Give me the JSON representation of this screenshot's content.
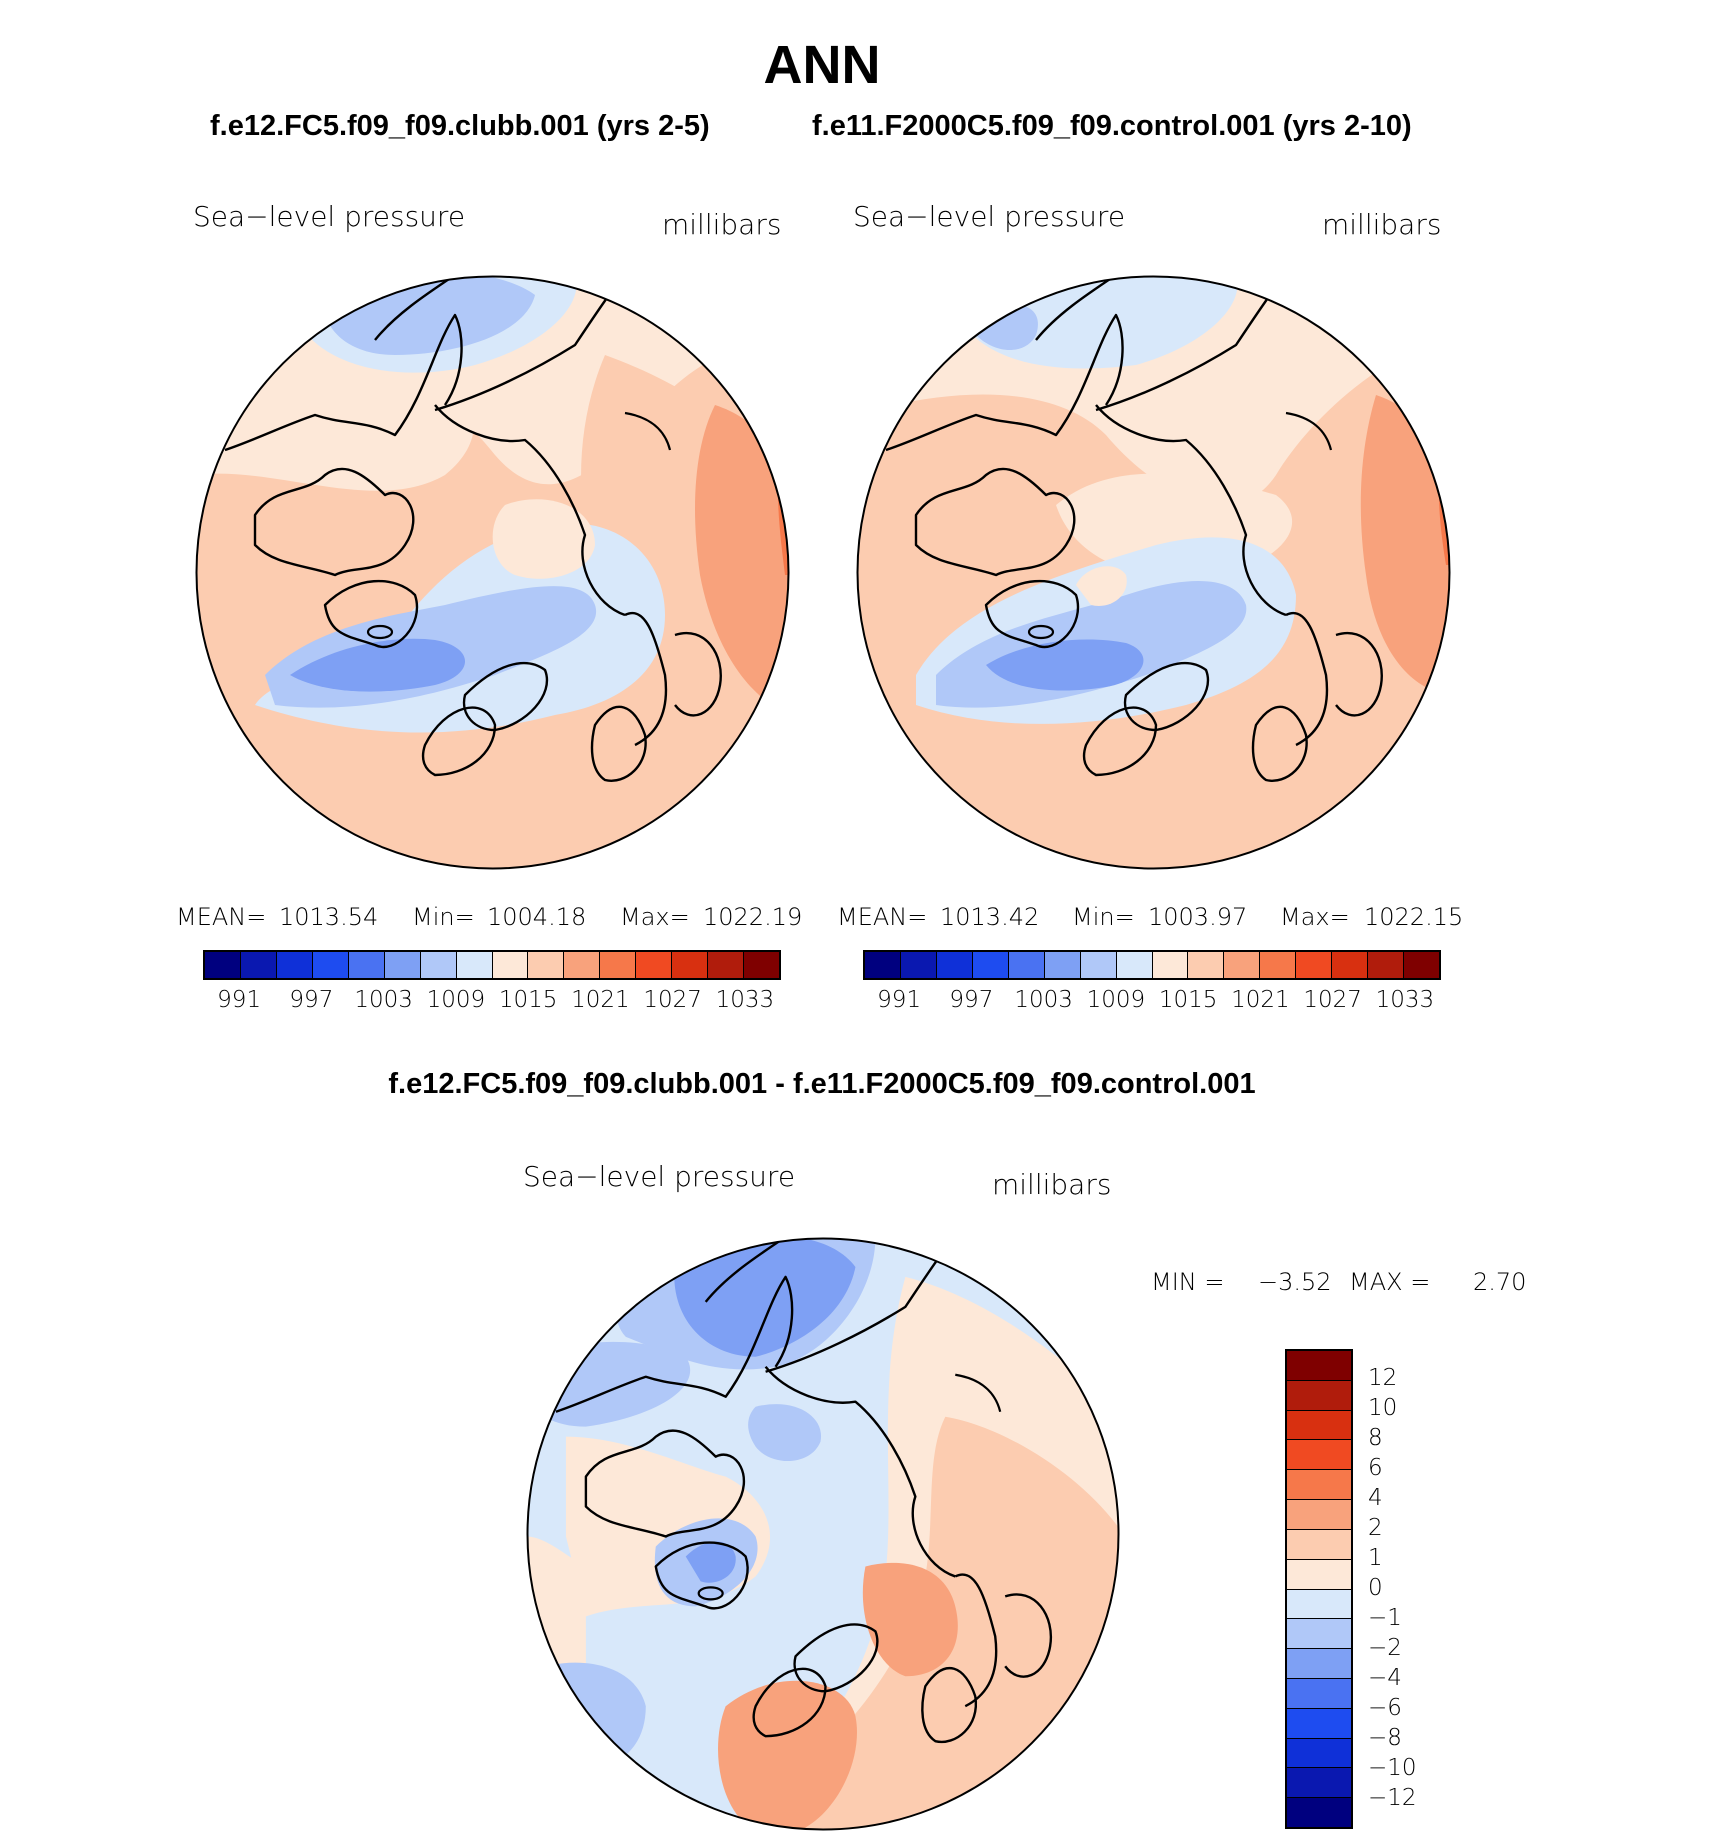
{
  "title": "ANN",
  "panels": [
    {
      "case_title": "f.e12.FC5.f09_f09.clubb.001 (yrs 2-5)",
      "variable": "Sea−level pressure",
      "units": "millibars",
      "mean_label": "MEAN=",
      "mean_value": "1013.54",
      "min_label": "Min=",
      "min_value": "1004.18",
      "max_label": "Max=",
      "max_value": "1022.19"
    },
    {
      "case_title": "f.e11.F2000C5.f09_f09.control.001 (yrs 2-10)",
      "variable": "Sea−level pressure",
      "units": "millibars",
      "mean_label": "MEAN=",
      "mean_value": "1013.42",
      "min_label": "Min=",
      "min_value": "1003.97",
      "max_label": "Max=",
      "max_value": "1022.15"
    }
  ],
  "abs_colorbar": {
    "colors": [
      "#00007f",
      "#0a18b0",
      "#0f30d8",
      "#1e4cf0",
      "#4a72f2",
      "#7ea0f4",
      "#b0c8f8",
      "#d8e8fa",
      "#fde8d8",
      "#fcccb0",
      "#f8a27c",
      "#f6784a",
      "#f04a22",
      "#d83010",
      "#b01c0c",
      "#7f0000"
    ],
    "ticks": [
      "991",
      "997",
      "1003",
      "1009",
      "1015",
      "1021",
      "1027",
      "1033"
    ]
  },
  "diff": {
    "title": "f.e12.FC5.f09_f09.clubb.001 - f.e11.F2000C5.f09_f09.control.001",
    "variable": "Sea−level pressure",
    "units": "millibars",
    "min_label": "MIN =",
    "min_value": "−3.52",
    "max_label": "MAX =",
    "max_value": "2.70",
    "colors": [
      "#00007f",
      "#0a18b0",
      "#0f30d8",
      "#1e4cf0",
      "#4a72f2",
      "#7ea0f4",
      "#b0c8f8",
      "#d8e8fa",
      "#fde8d8",
      "#fcccb0",
      "#f8a27c",
      "#f6784a",
      "#f04a22",
      "#d83010",
      "#b01c0c",
      "#7f0000"
    ],
    "ticks": [
      "12",
      "10",
      "8",
      "6",
      "4",
      "2",
      "1",
      "0",
      "−1",
      "−2",
      "−4",
      "−6",
      "−8",
      "−10",
      "−12"
    ]
  },
  "map_colors": {
    "pink_light": "#fde8d8",
    "salmon": "#fcccb0",
    "orange": "#f8a27c",
    "orange_dark": "#f6784a",
    "blue_light": "#d8e8fa",
    "blue_mid": "#b0c8f8",
    "blue_deep": "#7ea0f4",
    "blue_deeper": "#4a72f2"
  }
}
